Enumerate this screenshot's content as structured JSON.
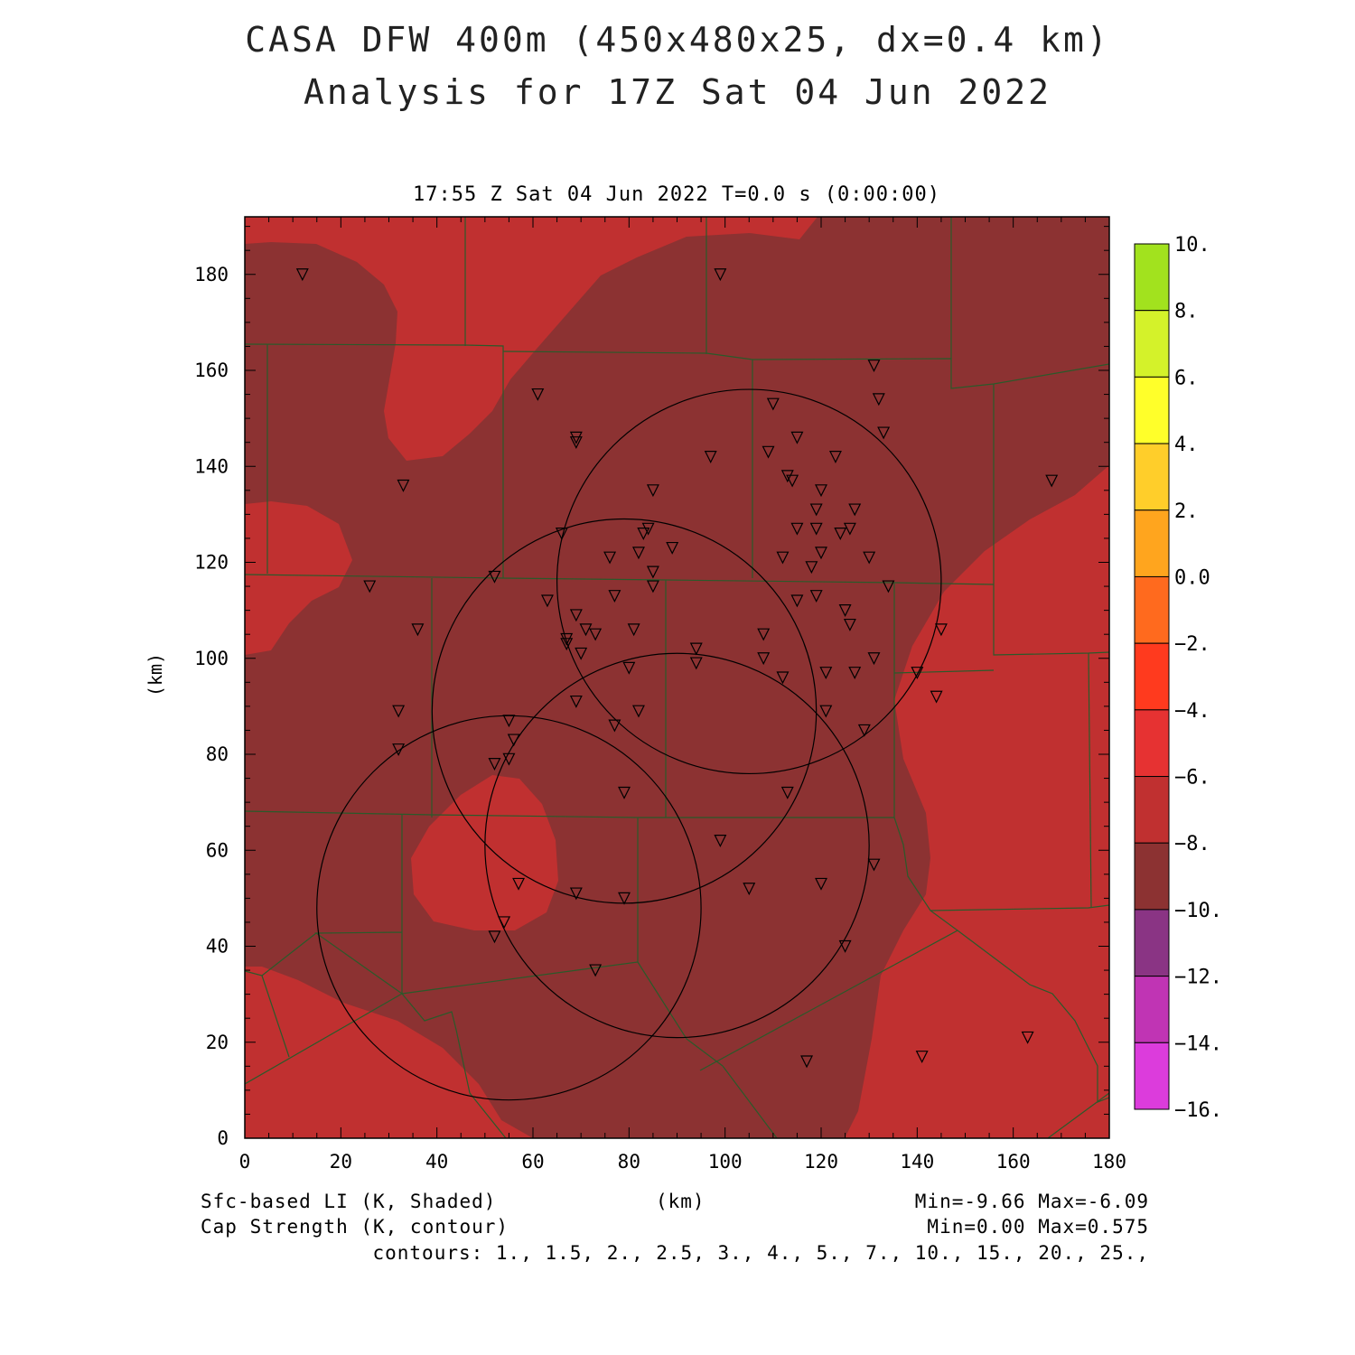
{
  "title_line1": "CASA DFW 400m (450x480x25, dx=0.4 km)",
  "title_line2": "Analysis for 17Z Sat 04 Jun 2022",
  "valid_time": "17:55 Z Sat 04 Jun 2022   T=0.0 s (0:00:00)",
  "x_axis": {
    "label": "(km)",
    "ticks": [
      0,
      20,
      40,
      60,
      80,
      100,
      120,
      140,
      160,
      180
    ],
    "range": [
      0,
      180
    ]
  },
  "y_axis": {
    "label": "(km)",
    "ticks": [
      0,
      20,
      40,
      60,
      80,
      100,
      120,
      140,
      160,
      180
    ],
    "range": [
      0,
      192
    ]
  },
  "field1": {
    "name": "Sfc-based LI (K, Shaded)",
    "stats": "Min=-9.66 Max=-6.09"
  },
  "field2": {
    "name": "Cap Strength (K, contour)",
    "stats": "Min=0.00 Max=0.575"
  },
  "contours_text": "contours: 1., 1.5, 2., 2.5, 3., 4., 5., 7., 10., 15., 20., 25.,",
  "colorbar": {
    "labels": [
      "10.",
      "8.",
      "6.",
      "4.",
      "2.",
      "0.0",
      "−2.",
      "−4.",
      "−6.",
      "−8.",
      "−10.",
      "−12.",
      "−14.",
      "−16."
    ],
    "colors": [
      "#a2e21e",
      "#d4f22a",
      "#ffff2a",
      "#ffce2a",
      "#ffa51e",
      "#ff6a1e",
      "#ff3a1e",
      "#e63232",
      "#c03030",
      "#8c3232",
      "#8a3484",
      "#c034b4",
      "#dc3cdc"
    ]
  },
  "map_colors": {
    "light": "#c03030",
    "dark": "#8c3232",
    "borders": "#2a5a2a",
    "station": "#000000"
  },
  "chart_data": {
    "type": "map",
    "radar_range_rings_km": [
      {
        "center": [
          105,
          116
        ],
        "radius": 40
      },
      {
        "center": [
          79,
          89
        ],
        "radius": 40
      },
      {
        "center": [
          90,
          61
        ],
        "radius": 40
      },
      {
        "center": [
          55,
          48
        ],
        "radius": 40
      }
    ],
    "stations_km": [
      [
        12,
        180
      ],
      [
        99,
        180
      ],
      [
        61,
        155
      ],
      [
        69,
        146
      ],
      [
        69,
        145
      ],
      [
        33,
        136
      ],
      [
        131,
        161
      ],
      [
        132,
        154
      ],
      [
        133,
        147
      ],
      [
        168,
        137
      ],
      [
        110,
        153
      ],
      [
        115,
        146
      ],
      [
        109,
        143
      ],
      [
        97,
        142
      ],
      [
        123,
        142
      ],
      [
        113,
        138
      ],
      [
        114,
        137
      ],
      [
        120,
        135
      ],
      [
        85,
        135
      ],
      [
        119,
        131
      ],
      [
        127,
        131
      ],
      [
        66,
        126
      ],
      [
        84,
        127
      ],
      [
        83,
        126
      ],
      [
        115,
        127
      ],
      [
        119,
        127
      ],
      [
        126,
        127
      ],
      [
        124,
        126
      ],
      [
        89,
        123
      ],
      [
        76,
        121
      ],
      [
        82,
        122
      ],
      [
        112,
        121
      ],
      [
        120,
        122
      ],
      [
        130,
        121
      ],
      [
        85,
        118
      ],
      [
        118,
        119
      ],
      [
        52,
        117
      ],
      [
        26,
        115
      ],
      [
        85,
        115
      ],
      [
        134,
        115
      ],
      [
        63,
        112
      ],
      [
        115,
        112
      ],
      [
        119,
        113
      ],
      [
        125,
        110
      ],
      [
        69,
        109
      ],
      [
        77,
        113
      ],
      [
        126,
        107
      ],
      [
        36,
        106
      ],
      [
        71,
        106
      ],
      [
        73,
        105
      ],
      [
        81,
        106
      ],
      [
        67,
        104
      ],
      [
        67,
        103
      ],
      [
        70,
        101
      ],
      [
        108,
        105
      ],
      [
        94,
        102
      ],
      [
        145,
        106
      ],
      [
        108,
        100
      ],
      [
        94,
        99
      ],
      [
        131,
        100
      ],
      [
        80,
        98
      ],
      [
        112,
        96
      ],
      [
        121,
        97
      ],
      [
        127,
        97
      ],
      [
        140,
        97
      ],
      [
        69,
        91
      ],
      [
        144,
        92
      ],
      [
        32,
        89
      ],
      [
        82,
        89
      ],
      [
        121,
        89
      ],
      [
        55,
        87
      ],
      [
        77,
        86
      ],
      [
        129,
        85
      ],
      [
        56,
        83
      ],
      [
        32,
        81
      ],
      [
        55,
        79
      ],
      [
        52,
        78
      ],
      [
        79,
        72
      ],
      [
        113,
        72
      ],
      [
        99,
        62
      ],
      [
        131,
        57
      ],
      [
        57,
        53
      ],
      [
        120,
        53
      ],
      [
        105,
        52
      ],
      [
        69,
        51
      ],
      [
        79,
        50
      ],
      [
        54,
        45
      ],
      [
        52,
        42
      ],
      [
        125,
        40
      ],
      [
        73,
        35
      ],
      [
        163,
        21
      ],
      [
        141,
        17
      ],
      [
        117,
        16
      ]
    ]
  }
}
